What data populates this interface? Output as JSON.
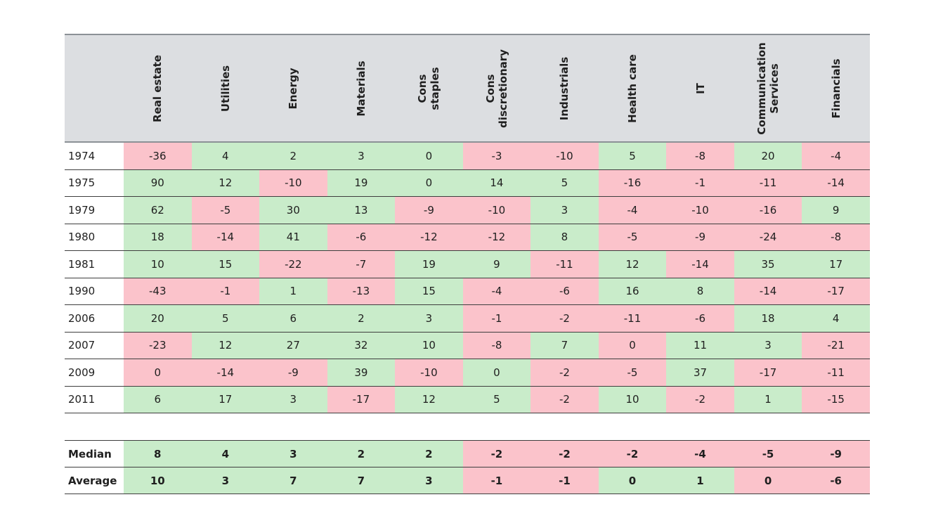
{
  "chart_data": {
    "type": "heatmap",
    "columns": [
      "Real estate",
      "Utilities",
      "Energy",
      "Materials",
      "Cons\nstaples",
      "Cons\ndiscretionary",
      "Industrials",
      "Health care",
      "IT",
      "Communication\nServices",
      "Financials"
    ],
    "corner_label": "",
    "rows": [
      {
        "label": "1974",
        "values": [
          -36,
          4,
          2,
          3,
          0,
          -3,
          -10,
          5,
          -8,
          20,
          -4
        ],
        "cell_colors": [
          "pink",
          "green",
          "green",
          "green",
          "green",
          "pink",
          "pink",
          "green",
          "pink",
          "green",
          "pink"
        ]
      },
      {
        "label": "1975",
        "values": [
          90,
          12,
          -10,
          19,
          0,
          14,
          5,
          -16,
          -1,
          -11,
          -14
        ],
        "cell_colors": [
          "green",
          "green",
          "pink",
          "green",
          "green",
          "green",
          "green",
          "pink",
          "pink",
          "pink",
          "pink"
        ]
      },
      {
        "label": "1979",
        "values": [
          62,
          -5,
          30,
          13,
          -9,
          -10,
          3,
          -4,
          -10,
          -16,
          9
        ],
        "cell_colors": [
          "green",
          "pink",
          "green",
          "green",
          "pink",
          "pink",
          "green",
          "pink",
          "pink",
          "pink",
          "green"
        ]
      },
      {
        "label": "1980",
        "values": [
          18,
          -14,
          41,
          -6,
          -12,
          -12,
          8,
          -5,
          -9,
          -24,
          -8
        ],
        "cell_colors": [
          "green",
          "pink",
          "green",
          "pink",
          "pink",
          "pink",
          "green",
          "pink",
          "pink",
          "pink",
          "pink"
        ]
      },
      {
        "label": "1981",
        "values": [
          10,
          15,
          -22,
          -7,
          19,
          9,
          -11,
          12,
          -14,
          35,
          17
        ],
        "cell_colors": [
          "green",
          "green",
          "pink",
          "pink",
          "green",
          "green",
          "pink",
          "green",
          "pink",
          "green",
          "green"
        ]
      },
      {
        "label": "1990",
        "values": [
          -43,
          -1,
          1,
          -13,
          15,
          -4,
          -6,
          16,
          8,
          -14,
          -17
        ],
        "cell_colors": [
          "pink",
          "pink",
          "green",
          "pink",
          "green",
          "pink",
          "pink",
          "green",
          "green",
          "pink",
          "pink"
        ]
      },
      {
        "label": "2006",
        "values": [
          20,
          5,
          6,
          2,
          3,
          -1,
          -2,
          -11,
          -6,
          18,
          4
        ],
        "cell_colors": [
          "green",
          "green",
          "green",
          "green",
          "green",
          "pink",
          "pink",
          "pink",
          "pink",
          "green",
          "green"
        ]
      },
      {
        "label": "2007",
        "values": [
          -23,
          12,
          27,
          32,
          10,
          -8,
          7,
          0,
          11,
          3,
          -21
        ],
        "cell_colors": [
          "pink",
          "green",
          "green",
          "green",
          "green",
          "pink",
          "green",
          "pink",
          "green",
          "green",
          "pink"
        ]
      },
      {
        "label": "2009",
        "values": [
          0,
          -14,
          -9,
          39,
          -10,
          0,
          -2,
          -5,
          37,
          -17,
          -11
        ],
        "cell_colors": [
          "pink",
          "pink",
          "pink",
          "green",
          "pink",
          "green",
          "pink",
          "pink",
          "green",
          "pink",
          "pink"
        ]
      },
      {
        "label": "2011",
        "values": [
          6,
          17,
          3,
          -17,
          12,
          5,
          -2,
          10,
          -2,
          1,
          -15
        ],
        "cell_colors": [
          "green",
          "green",
          "green",
          "pink",
          "green",
          "green",
          "pink",
          "green",
          "pink",
          "green",
          "pink"
        ]
      }
    ],
    "summary_rows": [
      {
        "label": "Median",
        "values": [
          8,
          4,
          3,
          2,
          2,
          -2,
          -2,
          -2,
          -4,
          -5,
          -9
        ],
        "cell_colors": [
          "green",
          "green",
          "green",
          "green",
          "green",
          "pink",
          "pink",
          "pink",
          "pink",
          "pink",
          "pink"
        ]
      },
      {
        "label": "Average",
        "values": [
          10,
          3,
          7,
          7,
          3,
          -1,
          -1,
          0,
          1,
          0,
          -6
        ],
        "cell_colors": [
          "green",
          "green",
          "green",
          "green",
          "green",
          "pink",
          "pink",
          "green",
          "green",
          "pink",
          "pink"
        ]
      }
    ],
    "positive_cell_color": "#c9ecca",
    "negative_cell_color": "#fbc3cb",
    "header_background_color": "#dcdee1"
  }
}
